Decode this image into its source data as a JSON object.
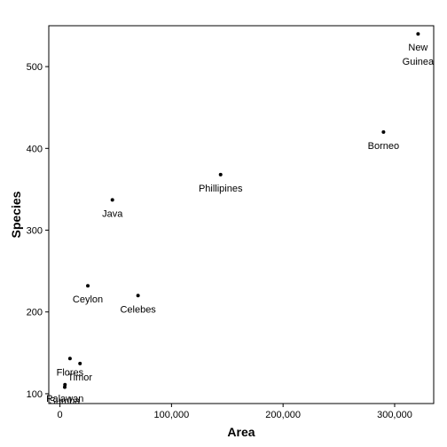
{
  "chart_data": {
    "type": "scatter",
    "title": "",
    "xlabel": "Area",
    "ylabel": "Species",
    "xlim": [
      -10000,
      335000
    ],
    "ylim": [
      88,
      550
    ],
    "grid": false,
    "x_ticks": [
      {
        "value": 0,
        "label": "0"
      },
      {
        "value": 100000,
        "label": "100,000"
      },
      {
        "value": 200000,
        "label": "200,000"
      },
      {
        "value": 300000,
        "label": "300,000"
      }
    ],
    "y_ticks": [
      {
        "value": 100,
        "label": "100"
      },
      {
        "value": 200,
        "label": "200"
      },
      {
        "value": 300,
        "label": "300"
      },
      {
        "value": 400,
        "label": "400"
      },
      {
        "value": 500,
        "label": "500"
      }
    ],
    "points": [
      {
        "label": "New Guinea",
        "label_lines": [
          "New",
          "Guinea"
        ],
        "x": 321000,
        "y": 540
      },
      {
        "label": "Borneo",
        "label_lines": [
          "Borneo"
        ],
        "x": 290000,
        "y": 420
      },
      {
        "label": "Phillipines",
        "label_lines": [
          "Phillipines"
        ],
        "x": 144000,
        "y": 368
      },
      {
        "label": "Java",
        "label_lines": [
          "Java"
        ],
        "x": 47000,
        "y": 337
      },
      {
        "label": "Ceylon",
        "label_lines": [
          "Ceylon"
        ],
        "x": 25000,
        "y": 232
      },
      {
        "label": "Celebes",
        "label_lines": [
          "Celebes"
        ],
        "x": 70000,
        "y": 220
      },
      {
        "label": "Flores",
        "label_lines": [
          "Flores"
        ],
        "x": 9000,
        "y": 143
      },
      {
        "label": "Timor",
        "label_lines": [
          "Timor"
        ],
        "x": 18000,
        "y": 137
      },
      {
        "label": "Palawan",
        "label_lines": [
          "Palawan"
        ],
        "x": 4500,
        "y": 111
      },
      {
        "label": "Sumba",
        "label_lines": [
          "Sumba"
        ],
        "x": 4300,
        "y": 108
      }
    ]
  }
}
